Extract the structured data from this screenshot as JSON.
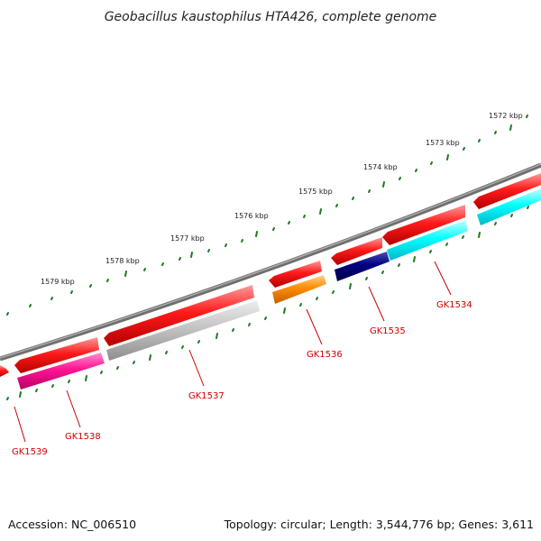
{
  "title": "Geobacillus kaustophilus HTA426, complete genome",
  "footer": {
    "accession": "Accession: NC_006510",
    "summary": "Topology: circular; Length: 3,544,776 bp; Genes: 3,611"
  },
  "colors": {
    "backbone": "#7a7a7a",
    "tick": "#1f7a1f",
    "forward_cds": "#ff1a1a",
    "gene_label": "#cc0000"
  },
  "kbp_labels": [
    "1572 kbp",
    "1573 kbp",
    "1574 kbp",
    "1575 kbp",
    "1576 kbp",
    "1577 kbp",
    "1578 kbp",
    "1579 kbp"
  ],
  "genes": [
    {
      "id": "GK1534",
      "color": "#00ffff",
      "strand": "reverse"
    },
    {
      "id": "GK1535",
      "color": "#000080",
      "strand": "reverse"
    },
    {
      "id": "GK1536",
      "color": "#ff8c00",
      "strand": "reverse"
    },
    {
      "id": "GK1537",
      "color": "#b8b8b8",
      "strand": "reverse"
    },
    {
      "id": "GK1538",
      "color": "#ff1493",
      "strand": "reverse"
    },
    {
      "id": "GK1539",
      "color": "#ff1a1a",
      "strand": "forward"
    }
  ]
}
